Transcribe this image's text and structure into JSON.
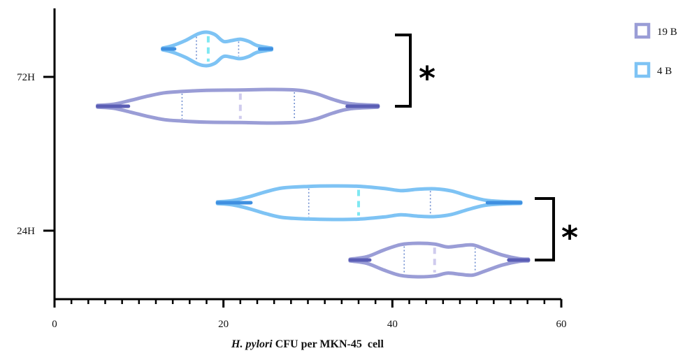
{
  "chart_data": {
    "type": "violin",
    "orientation": "horizontal",
    "xlabel_italic": "H. pylori",
    "xlabel_rest": "CFU per MKN-45  cell",
    "xlim": [
      0,
      60
    ],
    "xticks": [
      0,
      20,
      40,
      60
    ],
    "minor_tick_step": 2,
    "categories": [
      "72H",
      "24H"
    ],
    "legend_placement": "top-right",
    "series": [
      {
        "name": "19 B",
        "color": "#9a9dd6",
        "tail_color": "#5b5eb5",
        "median_color": "#cfcbee",
        "quartile_color": "#6f8ed0",
        "violins": [
          {
            "category": "72H",
            "min": 5.1,
            "q1": 15.1,
            "median": 22.0,
            "q3": 28.4,
            "max": 38.3,
            "density": [
              [
                5.1,
                0.05
              ],
              [
                7,
                0.12
              ],
              [
                9,
                0.35
              ],
              [
                11,
                0.6
              ],
              [
                13,
                0.8
              ],
              [
                15,
                0.88
              ],
              [
                18,
                0.95
              ],
              [
                22,
                0.97
              ],
              [
                26,
                1.0
              ],
              [
                29,
                0.95
              ],
              [
                31,
                0.75
              ],
              [
                33,
                0.4
              ],
              [
                35,
                0.15
              ],
              [
                38.3,
                0.05
              ]
            ]
          },
          {
            "category": "24H",
            "min": 35.0,
            "q1": 41.4,
            "median": 45.0,
            "q3": 49.8,
            "max": 56.1,
            "density": [
              [
                35,
                0.05
              ],
              [
                37,
                0.2
              ],
              [
                39,
                0.6
              ],
              [
                41,
                0.92
              ],
              [
                43,
                1.0
              ],
              [
                45,
                0.95
              ],
              [
                46.5,
                0.78
              ],
              [
                48,
                0.85
              ],
              [
                49.5,
                0.9
              ],
              [
                51,
                0.65
              ],
              [
                53,
                0.3
              ],
              [
                55,
                0.08
              ],
              [
                56.1,
                0.05
              ]
            ]
          }
        ]
      },
      {
        "name": "4 B",
        "color": "#7ec3f4",
        "tail_color": "#3f8fe0",
        "median_color": "#7fe8f2",
        "quartile_color": "#6f8ed0",
        "violins": [
          {
            "category": "72H",
            "min": 12.8,
            "q1": 16.8,
            "median": 18.2,
            "q3": 21.8,
            "max": 25.7,
            "density": [
              [
                12.8,
                0.05
              ],
              [
                14,
                0.2
              ],
              [
                15.5,
                0.5
              ],
              [
                17,
                0.9
              ],
              [
                18,
                1.0
              ],
              [
                19,
                0.85
              ],
              [
                20,
                0.45
              ],
              [
                21,
                0.5
              ],
              [
                22,
                0.58
              ],
              [
                23,
                0.45
              ],
              [
                24,
                0.2
              ],
              [
                25.7,
                0.05
              ]
            ]
          },
          {
            "category": "24H",
            "min": 19.3,
            "q1": 30.1,
            "median": 36.0,
            "q3": 44.5,
            "max": 55.2,
            "density": [
              [
                19.3,
                0.05
              ],
              [
                21,
                0.12
              ],
              [
                23,
                0.35
              ],
              [
                25,
                0.65
              ],
              [
                27,
                0.88
              ],
              [
                30,
                0.97
              ],
              [
                33,
                1.0
              ],
              [
                36,
                0.98
              ],
              [
                39,
                0.85
              ],
              [
                41,
                0.72
              ],
              [
                43,
                0.8
              ],
              [
                45,
                0.83
              ],
              [
                47,
                0.7
              ],
              [
                49,
                0.4
              ],
              [
                51,
                0.15
              ],
              [
                53,
                0.07
              ],
              [
                55.2,
                0.04
              ]
            ]
          }
        ]
      }
    ],
    "significance": [
      {
        "category": "72H",
        "label": "*"
      },
      {
        "category": "24H",
        "label": "*"
      }
    ]
  }
}
